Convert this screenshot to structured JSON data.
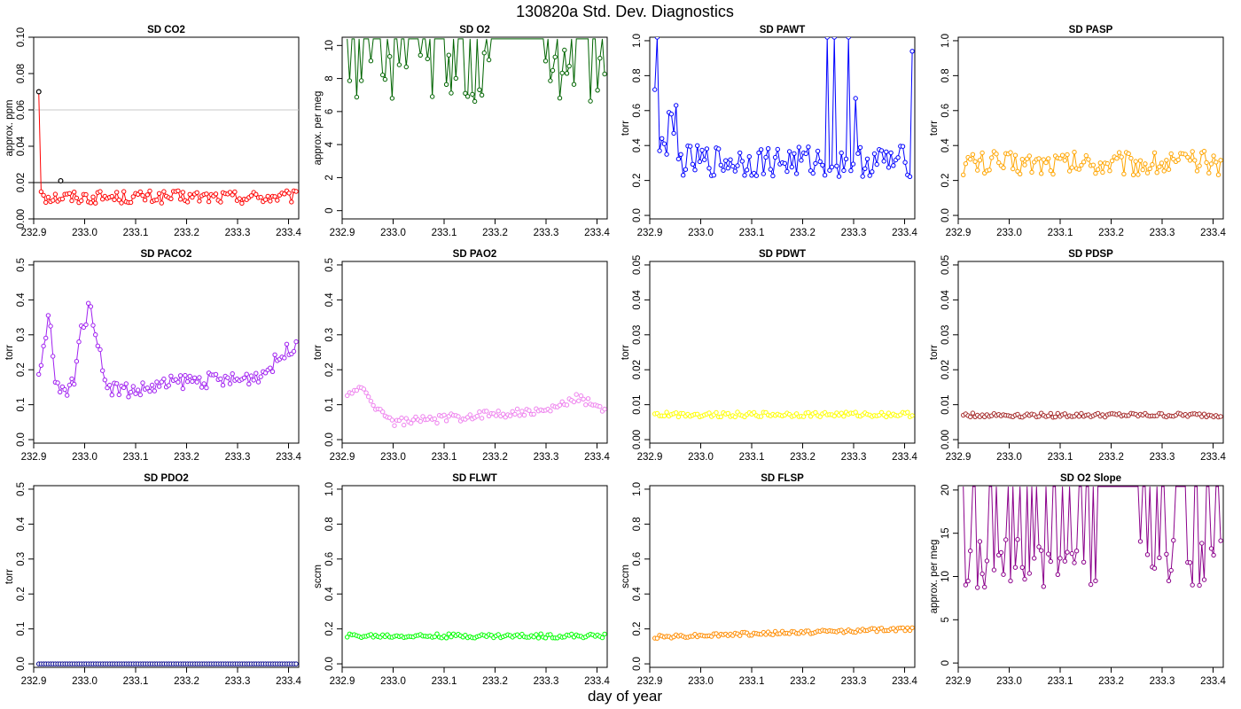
{
  "page": {
    "title": "130820a   Std. Dev. Diagnostics",
    "xlabel": "day of year"
  },
  "chart_data": [
    {
      "type": "line",
      "title": "SD CO2",
      "ylabel": "approx. ppm",
      "color": "#ff0000",
      "xlim": [
        232.9,
        233.42
      ],
      "ylim": [
        0,
        0.1
      ],
      "xticks": [
        "232.9",
        "233.0",
        "233.1",
        "233.2",
        "233.3",
        "233.4"
      ],
      "yticks": [
        "0.00",
        "0.02",
        "0.04",
        "0.06",
        "0.08",
        "0.10"
      ],
      "hlines": [
        {
          "y": 0.02,
          "color": "#000000"
        },
        {
          "y": 0.06,
          "color": "#c8c8c8"
        }
      ],
      "highlight": [
        {
          "x": 232.91,
          "y": 0.07
        },
        {
          "x": 232.953,
          "y": 0.021
        }
      ],
      "pattern": "noise",
      "x0": 232.91,
      "x1": 233.415,
      "n": 110,
      "base": 0.012,
      "amp": 0.0035,
      "start": [
        0.07,
        0.015,
        0.013
      ]
    },
    {
      "type": "line",
      "title": "SD O2",
      "ylabel": "approx. per meg",
      "color": "#006400",
      "xlim": [
        232.9,
        233.42
      ],
      "ylim": [
        -0.5,
        10.5
      ],
      "xticks": [
        "232.9",
        "233.0",
        "233.1",
        "233.2",
        "233.3",
        "233.4"
      ],
      "yticks": [
        "0",
        "2",
        "4",
        "6",
        "8",
        "10"
      ],
      "pattern": "clipped",
      "x0": 232.91,
      "x1": 233.415,
      "n": 110,
      "base": 8.2,
      "amp": 1.6,
      "clipTop": 10.4,
      "gaps": [
        [
          233.2,
          233.28
        ]
      ]
    },
    {
      "type": "line",
      "title": "SD PAWT",
      "ylabel": "torr",
      "color": "#0000ff",
      "xlim": [
        232.9,
        233.42
      ],
      "ylim": [
        -0.02,
        1.02
      ],
      "xticks": [
        "232.9",
        "233.0",
        "233.1",
        "233.2",
        "233.3",
        "233.4"
      ],
      "yticks": [
        "0.0",
        "0.2",
        "0.4",
        "0.6",
        "0.8",
        "1.0"
      ],
      "pattern": "spiky",
      "x0": 232.91,
      "x1": 233.415,
      "n": 110,
      "base": 0.31,
      "amp": 0.09,
      "start": [
        0.72,
        1.02,
        0.37,
        0.44,
        0.41,
        0.35,
        0.59,
        0.58,
        0.47,
        0.63
      ],
      "spikes": [
        [
          233.25,
          1.02
        ],
        [
          233.26,
          1.02
        ],
        [
          233.29,
          1.02
        ],
        [
          233.305,
          0.67
        ],
        [
          233.413,
          0.94
        ]
      ]
    },
    {
      "type": "line",
      "title": "SD PASP",
      "ylabel": "torr",
      "color": "#ffa500",
      "xlim": [
        232.9,
        233.42
      ],
      "ylim": [
        -0.02,
        1.02
      ],
      "xticks": [
        "232.9",
        "233.0",
        "233.1",
        "233.2",
        "233.3",
        "233.4"
      ],
      "yticks": [
        "0.0",
        "0.2",
        "0.4",
        "0.6",
        "0.8",
        "1.0"
      ],
      "pattern": "noise",
      "x0": 232.91,
      "x1": 233.415,
      "n": 110,
      "base": 0.3,
      "amp": 0.07
    },
    {
      "type": "line",
      "title": "SD PACO2",
      "ylabel": "torr",
      "color": "#a020f0",
      "xlim": [
        232.9,
        233.42
      ],
      "ylim": [
        -0.01,
        0.51
      ],
      "xticks": [
        "232.9",
        "233.0",
        "233.1",
        "233.2",
        "233.3",
        "233.4"
      ],
      "yticks": [
        "0.0",
        "0.1",
        "0.2",
        "0.3",
        "0.4",
        "0.5"
      ],
      "pattern": "curve",
      "x0": 232.91,
      "x1": 233.415,
      "n": 110,
      "amp": 0.022,
      "curve": [
        [
          232.91,
          0.17
        ],
        [
          232.925,
          0.3
        ],
        [
          232.93,
          0.37
        ],
        [
          232.94,
          0.2
        ],
        [
          232.945,
          0.15
        ],
        [
          232.965,
          0.13
        ],
        [
          232.98,
          0.18
        ],
        [
          232.99,
          0.3
        ],
        [
          233.01,
          0.38
        ],
        [
          233.02,
          0.33
        ],
        [
          233.035,
          0.2
        ],
        [
          233.05,
          0.15
        ],
        [
          233.1,
          0.14
        ],
        [
          233.2,
          0.17
        ],
        [
          233.3,
          0.17
        ],
        [
          233.35,
          0.19
        ],
        [
          233.38,
          0.23
        ],
        [
          233.415,
          0.28
        ]
      ]
    },
    {
      "type": "scatter",
      "title": "SD PAO2",
      "ylabel": "torr",
      "color": "#ee82ee",
      "xlim": [
        232.9,
        233.42
      ],
      "ylim": [
        -0.01,
        0.51
      ],
      "xticks": [
        "232.9",
        "233.0",
        "233.1",
        "233.2",
        "233.3",
        "233.4"
      ],
      "yticks": [
        "0.0",
        "0.1",
        "0.2",
        "0.3",
        "0.4",
        "0.5"
      ],
      "pattern": "curve",
      "x0": 232.91,
      "x1": 233.415,
      "n": 110,
      "amp": 0.012,
      "curve": [
        [
          232.91,
          0.12
        ],
        [
          232.92,
          0.145
        ],
        [
          232.94,
          0.14
        ],
        [
          232.97,
          0.09
        ],
        [
          233.0,
          0.05
        ],
        [
          233.05,
          0.055
        ],
        [
          233.1,
          0.06
        ],
        [
          233.2,
          0.075
        ],
        [
          233.3,
          0.08
        ],
        [
          233.36,
          0.12
        ],
        [
          233.38,
          0.11
        ],
        [
          233.415,
          0.09
        ]
      ]
    },
    {
      "type": "scatter",
      "title": "SD PDWT",
      "ylabel": "torr",
      "color": "#ffff00",
      "xlim": [
        232.9,
        233.42
      ],
      "ylim": [
        -0.001,
        0.051
      ],
      "xticks": [
        "232.9",
        "233.0",
        "233.1",
        "233.2",
        "233.3",
        "233.4"
      ],
      "yticks": [
        "0.00",
        "0.01",
        "0.02",
        "0.03",
        "0.04",
        "0.05"
      ],
      "pattern": "noise",
      "x0": 232.91,
      "x1": 233.415,
      "n": 110,
      "base": 0.0072,
      "amp": 0.0007
    },
    {
      "type": "line",
      "title": "SD PDSP",
      "ylabel": "torr",
      "color": "#a52a2a",
      "xlim": [
        232.9,
        233.42
      ],
      "ylim": [
        -0.001,
        0.051
      ],
      "xticks": [
        "232.9",
        "233.0",
        "233.1",
        "233.2",
        "233.3",
        "233.4"
      ],
      "yticks": [
        "0.00",
        "0.01",
        "0.02",
        "0.03",
        "0.04",
        "0.05"
      ],
      "pattern": "noise",
      "x0": 232.91,
      "x1": 233.415,
      "n": 110,
      "base": 0.007,
      "amp": 0.0006
    },
    {
      "type": "line",
      "title": "SD PDO2",
      "ylabel": "torr",
      "color": "#00008b",
      "xlim": [
        232.9,
        233.42
      ],
      "ylim": [
        -0.01,
        0.51
      ],
      "xticks": [
        "232.9",
        "233.0",
        "233.1",
        "233.2",
        "233.3",
        "233.4"
      ],
      "yticks": [
        "0.0",
        "0.1",
        "0.2",
        "0.3",
        "0.4",
        "0.5"
      ],
      "pattern": "noise",
      "x0": 232.91,
      "x1": 233.415,
      "n": 110,
      "base": 0.0,
      "amp": 0.0
    },
    {
      "type": "scatter",
      "title": "SD FLWT",
      "ylabel": "sccm",
      "color": "#00ff00",
      "xlim": [
        232.9,
        233.42
      ],
      "ylim": [
        -0.02,
        1.02
      ],
      "xticks": [
        "232.9",
        "233.0",
        "233.1",
        "233.2",
        "233.3",
        "233.4"
      ],
      "yticks": [
        "0.0",
        "0.2",
        "0.4",
        "0.6",
        "0.8",
        "1.0"
      ],
      "pattern": "noise",
      "x0": 232.91,
      "x1": 233.415,
      "n": 110,
      "base": 0.16,
      "amp": 0.012
    },
    {
      "type": "scatter",
      "title": "SD FLSP",
      "ylabel": "sccm",
      "color": "#ff8c00",
      "xlim": [
        232.9,
        233.42
      ],
      "ylim": [
        -0.02,
        1.02
      ],
      "xticks": [
        "232.9",
        "233.0",
        "233.1",
        "233.2",
        "233.3",
        "233.4"
      ],
      "yticks": [
        "0.0",
        "0.2",
        "0.4",
        "0.6",
        "0.8",
        "1.0"
      ],
      "pattern": "trend",
      "x0": 232.91,
      "x1": 233.415,
      "n": 110,
      "base": 0.155,
      "end": 0.2,
      "amp": 0.01
    },
    {
      "type": "line",
      "title": "SD O2 Slope",
      "ylabel": "approx. per meg",
      "color": "#8b008b",
      "xlim": [
        232.9,
        233.42
      ],
      "ylim": [
        -0.5,
        20.5
      ],
      "xticks": [
        "232.9",
        "233.0",
        "233.1",
        "233.2",
        "233.3",
        "233.4"
      ],
      "yticks": [
        "0",
        "5",
        "10",
        "15",
        "20"
      ],
      "pattern": "clipped",
      "x0": 232.91,
      "x1": 233.415,
      "n": 110,
      "base": 11.5,
      "amp": 2.8,
      "clipTop": 20.4,
      "gaps": [
        [
          233.19,
          233.25
        ]
      ]
    }
  ]
}
